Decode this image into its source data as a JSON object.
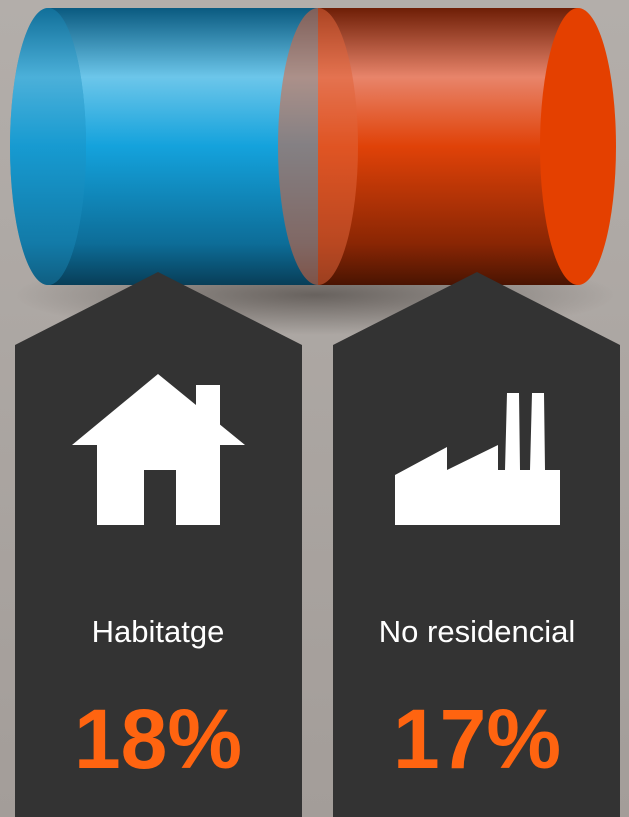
{
  "panels": [
    {
      "label": "Habitatge",
      "value": "18%"
    },
    {
      "label": "No residencial",
      "value": "17%"
    }
  ]
}
